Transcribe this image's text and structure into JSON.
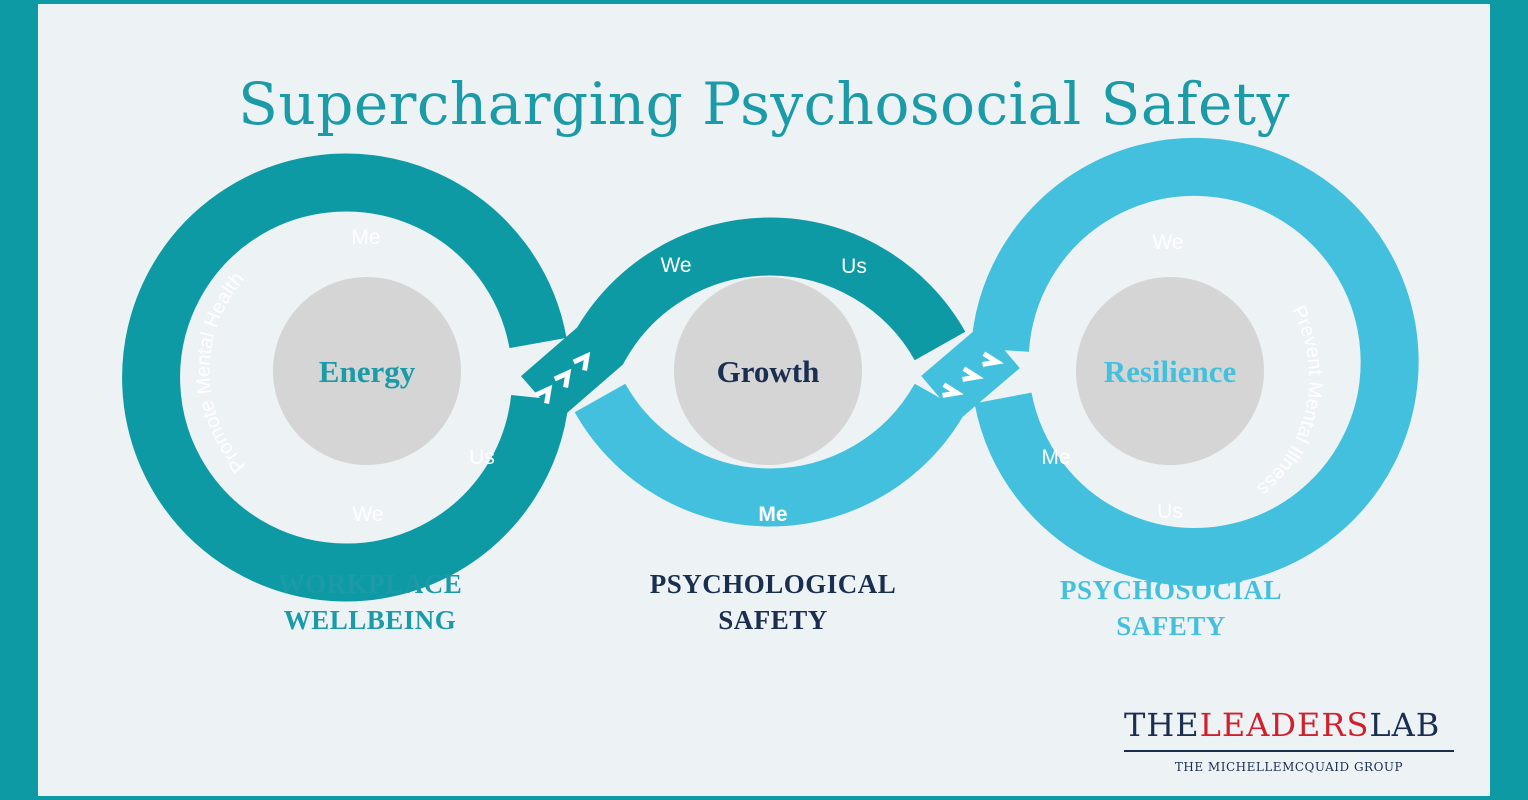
{
  "title": "Supercharging Psychosocial Safety",
  "centers": {
    "energy": "Energy",
    "growth": "Growth",
    "resilience": "Resilience"
  },
  "band_words": {
    "me_top_left": "Me",
    "we_bottom_left": "We",
    "us_left": "Us",
    "we_middle": "We",
    "us_middle": "Us",
    "me_bottom_middle": "Me",
    "we_top_right": "We",
    "me_right": "Me",
    "us_bottom_right": "Us"
  },
  "arc_labels": {
    "promote": "Promote Mental Health",
    "prevent": "Prevent Mental Illness"
  },
  "sections": {
    "workplace": [
      "WORKPLACE",
      "WELLBEING"
    ],
    "psychological": [
      "PSYCHOLOGICAL",
      "SAFETY"
    ],
    "psychosocial": [
      "PSYCHOSOCIAL",
      "SAFETY"
    ]
  },
  "logo": {
    "part1": "THE",
    "part2": "LEADERS",
    "part3": "LAB",
    "sub": "THE MICHELLEMCQUAID GROUP"
  },
  "colors": {
    "border": "#0e9aa5",
    "background": "#edf2f5",
    "teal": "#0e9aa5",
    "light_blue": "#42c0de",
    "navy": "#1a2e50",
    "circle": "#d5d5d5",
    "logo_red": "#d21f2b"
  }
}
